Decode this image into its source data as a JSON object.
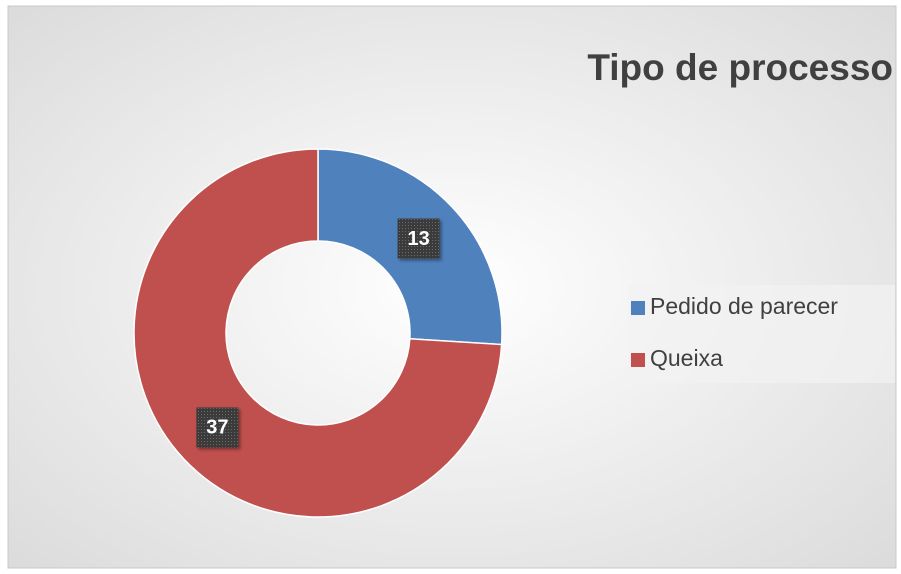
{
  "chart_data": {
    "type": "donut",
    "title": "Tipo de processo",
    "categories": [
      "Pedido de parecer",
      "Queixa"
    ],
    "values": [
      13,
      37
    ],
    "colors": [
      "#4f81bd",
      "#c0504d"
    ],
    "legend": "right"
  }
}
